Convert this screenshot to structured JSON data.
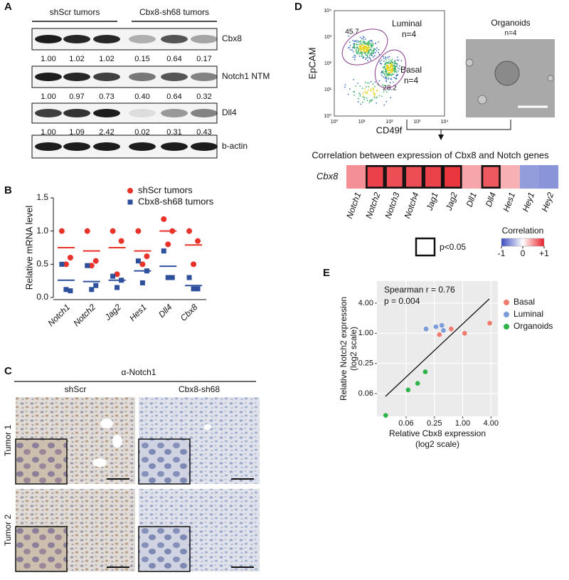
{
  "panel_labels": [
    "A",
    "B",
    "C",
    "D",
    "E"
  ],
  "blot": {
    "groups": [
      "shScr tumors",
      "Cbx8-sh68 tumors"
    ],
    "rows": [
      {
        "label": "Cbx8",
        "quant": [
          "1.00",
          "1.02",
          "1.02",
          "0.15",
          "0.64",
          "0.17"
        ]
      },
      {
        "label": "Notch1 NTM",
        "quant": [
          "1.00",
          "0.97",
          "0.73",
          "0.40",
          "0.64",
          "0.32"
        ]
      },
      {
        "label": "Dll4",
        "quant": [
          "1.00",
          "1.09",
          "2.42",
          "0.02",
          "0.31",
          "0.43"
        ]
      },
      {
        "label": "b-actin"
      }
    ]
  },
  "ihc": {
    "title": "α-Notch1",
    "columns": [
      "shScr",
      "Cbx8-sh68"
    ],
    "rows": [
      "Tumor 1",
      "Tumor 2"
    ]
  },
  "facs": {
    "y_label": "EpCAM",
    "x_label": "CD49f",
    "ticks": [
      "10⁰",
      "10¹",
      "10²",
      "10³",
      "10⁴"
    ],
    "gates": [
      {
        "name": "Luminal",
        "n": "n=4",
        "percent": 45.7
      },
      {
        "name": "Basal",
        "n": "n=4",
        "percent": 28.2
      }
    ],
    "organoids": {
      "title": "Organoids",
      "n": "n=4"
    }
  },
  "chart_data": [
    {
      "type": "strip",
      "ylabel": "Relative mRNA level",
      "categories": [
        "Notch1",
        "Notch2",
        "Jag2",
        "Hes1",
        "Dll4",
        "Cbx8"
      ],
      "ylim": [
        0,
        1.5
      ],
      "yticks": [
        {
          "value": 0,
          "label": "0.0"
        },
        0.5,
        {
          "value": 1,
          "label": "1.0"
        },
        1.5
      ],
      "series": [
        {
          "name": "shScr tumors",
          "color": "#e8322a",
          "marker": "circle",
          "values": [
            [
              1.0,
              0.6,
              0.5
            ],
            [
              1.0,
              0.55,
              0.48
            ],
            [
              1.0,
              0.85,
              0.35
            ],
            [
              1.0,
              0.62,
              0.5
            ],
            [
              1.18,
              1.0,
              0.8
            ],
            [
              1.0,
              0.85,
              0.5
            ]
          ],
          "means": [
            0.75,
            0.7,
            0.75,
            0.7,
            1.0,
            0.79
          ]
        },
        {
          "name": "Cbx8-sh68 tumors",
          "color": "#2e4f9c",
          "marker": "square",
          "values": [
            [
              0.5,
              0.1,
              0.12
            ],
            [
              0.48,
              0.18,
              0.12
            ],
            [
              0.32,
              0.26,
              0.15
            ],
            [
              0.55,
              0.4,
              0.22
            ],
            [
              0.7,
              0.3,
              0.3
            ],
            [
              0.3,
              0.13,
              0.13
            ]
          ],
          "means": [
            0.26,
            0.24,
            0.26,
            0.4,
            0.47,
            0.18
          ]
        }
      ]
    },
    {
      "type": "heatmap",
      "title": "Correlation between expression of Cbx8 and Notch genes",
      "row_label": "Cbx8",
      "categories": [
        "Notch1",
        "Notch2",
        "Notch3",
        "Notch4",
        "Jag1",
        "Jag2",
        "Dll1",
        "Dll4",
        "Hes1",
        "Hey1",
        "Hey2"
      ],
      "values": [
        0.5,
        0.85,
        0.8,
        0.8,
        0.85,
        0.9,
        0.4,
        0.75,
        0.35,
        -0.55,
        -0.6
      ],
      "significant": [
        false,
        true,
        true,
        true,
        true,
        true,
        false,
        true,
        false,
        false,
        false
      ],
      "sig_label": "p<0.05",
      "colorbar_label": "Correlation",
      "clim": [
        -1,
        1
      ],
      "cticks": [
        -1,
        0,
        {
          "value": 1,
          "label": "+1"
        }
      ],
      "colors": [
        "#3b4cc0",
        "#ffffff",
        "#e8202a"
      ]
    },
    {
      "type": "scatter",
      "log2": true,
      "xlabel": [
        "Relative Cbx8 expression",
        "(log2 scale)"
      ],
      "ylabel": [
        "Relative Notch2 expression",
        "(log2 scale)"
      ],
      "annotations": [
        "Spearman r = 0.76",
        "p = 0.004"
      ],
      "xlim": [
        0.015,
        5.6
      ],
      "ylim": [
        0.022,
        11
      ],
      "xticks": [
        {
          "value": 0.0625,
          "label": "0.06"
        },
        0.25,
        {
          "value": 1,
          "label": "1.00"
        },
        {
          "value": 4,
          "label": "4.00"
        }
      ],
      "yticks": [
        {
          "value": 0.0625,
          "label": "0.06"
        },
        0.25,
        {
          "value": 1,
          "label": "1.00"
        },
        {
          "value": 4,
          "label": "4.00"
        }
      ],
      "grid": true,
      "series": [
        {
          "name": "Basal",
          "color": "#f07b6e",
          "x": [
            0.32,
            0.57,
            1.1,
            3.76
          ],
          "y": [
            0.94,
            1.22,
            1.0,
            1.59
          ]
        },
        {
          "name": "Luminal",
          "color": "#7b9bd9",
          "x": [
            0.166,
            0.27,
            0.36,
            0.39
          ],
          "y": [
            1.22,
            1.35,
            1.44,
            1.14
          ]
        },
        {
          "name": "Organoids",
          "color": "#2db34a",
          "x": [
            0.023,
            0.069,
            0.11,
            0.16
          ],
          "y": [
            0.023,
            0.074,
            0.1,
            0.17
          ]
        }
      ]
    }
  ]
}
